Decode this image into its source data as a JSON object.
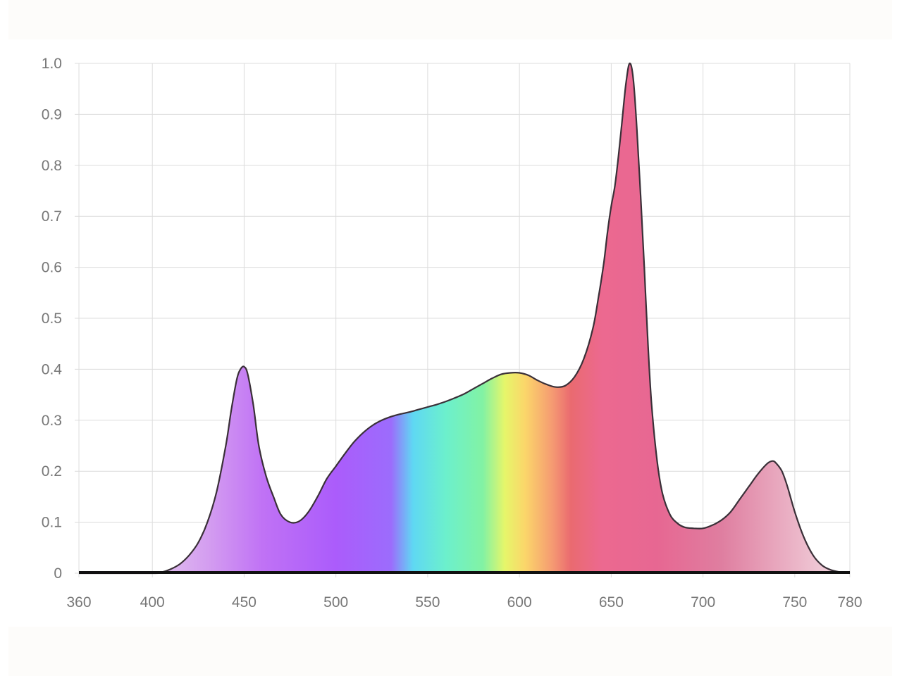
{
  "chart_data": {
    "type": "area",
    "title": "",
    "xlabel": "",
    "ylabel": "",
    "xlim": [
      360,
      780
    ],
    "ylim": [
      0,
      1.0
    ],
    "grid": true,
    "legend": "none",
    "x_ticks": [
      {
        "value": 360,
        "label": "360"
      },
      {
        "value": 400,
        "label": "400"
      },
      {
        "value": 450,
        "label": "450"
      },
      {
        "value": 500,
        "label": "500"
      },
      {
        "value": 550,
        "label": "550"
      },
      {
        "value": 600,
        "label": "600"
      },
      {
        "value": 650,
        "label": "650"
      },
      {
        "value": 700,
        "label": "700"
      },
      {
        "value": 750,
        "label": "750"
      },
      {
        "value": 780,
        "label": "780"
      }
    ],
    "y_ticks": [
      {
        "value": 0,
        "label": "0"
      },
      {
        "value": 0.1,
        "label": "0.1"
      },
      {
        "value": 0.2,
        "label": "0.2"
      },
      {
        "value": 0.3,
        "label": "0.3"
      },
      {
        "value": 0.4,
        "label": "0.4"
      },
      {
        "value": 0.5,
        "label": "0.5"
      },
      {
        "value": 0.6,
        "label": "0.6"
      },
      {
        "value": 0.7,
        "label": "0.7"
      },
      {
        "value": 0.8,
        "label": "0.8"
      },
      {
        "value": 0.9,
        "label": "0.9"
      },
      {
        "value": 1.0,
        "label": "1.0"
      }
    ],
    "series": [
      {
        "x": [
          360,
          400,
          405,
          410,
          415,
          420,
          425,
          430,
          435,
          440,
          443,
          446,
          448,
          450,
          452,
          455,
          458,
          462,
          466,
          470,
          475,
          480,
          485,
          490,
          495,
          500,
          505,
          510,
          515,
          520,
          525,
          530,
          535,
          540,
          545,
          550,
          555,
          560,
          565,
          570,
          575,
          580,
          585,
          590,
          595,
          600,
          605,
          610,
          615,
          620,
          625,
          630,
          635,
          640,
          643,
          646,
          648,
          650,
          652,
          654,
          656,
          658,
          660,
          662,
          664,
          666,
          668,
          670,
          672,
          675,
          678,
          682,
          686,
          690,
          695,
          700,
          705,
          710,
          715,
          720,
          725,
          730,
          735,
          738,
          740,
          743,
          746,
          750,
          755,
          760,
          765,
          770,
          775,
          778,
          780
        ],
        "values": [
          0,
          0,
          0.002,
          0.008,
          0.018,
          0.035,
          0.06,
          0.1,
          0.16,
          0.25,
          0.32,
          0.38,
          0.4,
          0.405,
          0.39,
          0.33,
          0.25,
          0.19,
          0.15,
          0.115,
          0.1,
          0.102,
          0.12,
          0.15,
          0.185,
          0.21,
          0.235,
          0.258,
          0.276,
          0.29,
          0.3,
          0.307,
          0.312,
          0.316,
          0.321,
          0.326,
          0.331,
          0.337,
          0.344,
          0.352,
          0.362,
          0.372,
          0.382,
          0.39,
          0.393,
          0.393,
          0.388,
          0.378,
          0.37,
          0.365,
          0.368,
          0.385,
          0.42,
          0.48,
          0.54,
          0.61,
          0.67,
          0.72,
          0.76,
          0.82,
          0.89,
          0.96,
          1.0,
          0.97,
          0.87,
          0.74,
          0.6,
          0.45,
          0.33,
          0.22,
          0.155,
          0.115,
          0.098,
          0.09,
          0.088,
          0.088,
          0.094,
          0.104,
          0.12,
          0.145,
          0.17,
          0.195,
          0.215,
          0.22,
          0.215,
          0.2,
          0.17,
          0.12,
          0.07,
          0.035,
          0.015,
          0.006,
          0.002,
          0.001,
          0
        ]
      }
    ],
    "spectrum_colors": [
      {
        "wl": 400,
        "color": "#e2c3ee"
      },
      {
        "wl": 430,
        "color": "#d49ef0"
      },
      {
        "wl": 460,
        "color": "#c072f5"
      },
      {
        "wl": 500,
        "color": "#ab5cfb"
      },
      {
        "wl": 530,
        "color": "#9c6cfc"
      },
      {
        "wl": 542,
        "color": "#5fd8f3"
      },
      {
        "wl": 560,
        "color": "#6cf0cc"
      },
      {
        "wl": 580,
        "color": "#82f2a4"
      },
      {
        "wl": 592,
        "color": "#e6f66a"
      },
      {
        "wl": 603,
        "color": "#fbd66a"
      },
      {
        "wl": 618,
        "color": "#f59a72"
      },
      {
        "wl": 628,
        "color": "#ea6a70"
      },
      {
        "wl": 645,
        "color": "#ec6990"
      },
      {
        "wl": 675,
        "color": "#e76792"
      },
      {
        "wl": 710,
        "color": "#df7ea0"
      },
      {
        "wl": 760,
        "color": "#eec2d1"
      },
      {
        "wl": 780,
        "color": "#f4dce5"
      }
    ],
    "colors": {
      "outline": "#3a3038",
      "grid": "#dcdcdc",
      "baseline": "#111111",
      "tick_text": "#777777"
    }
  }
}
